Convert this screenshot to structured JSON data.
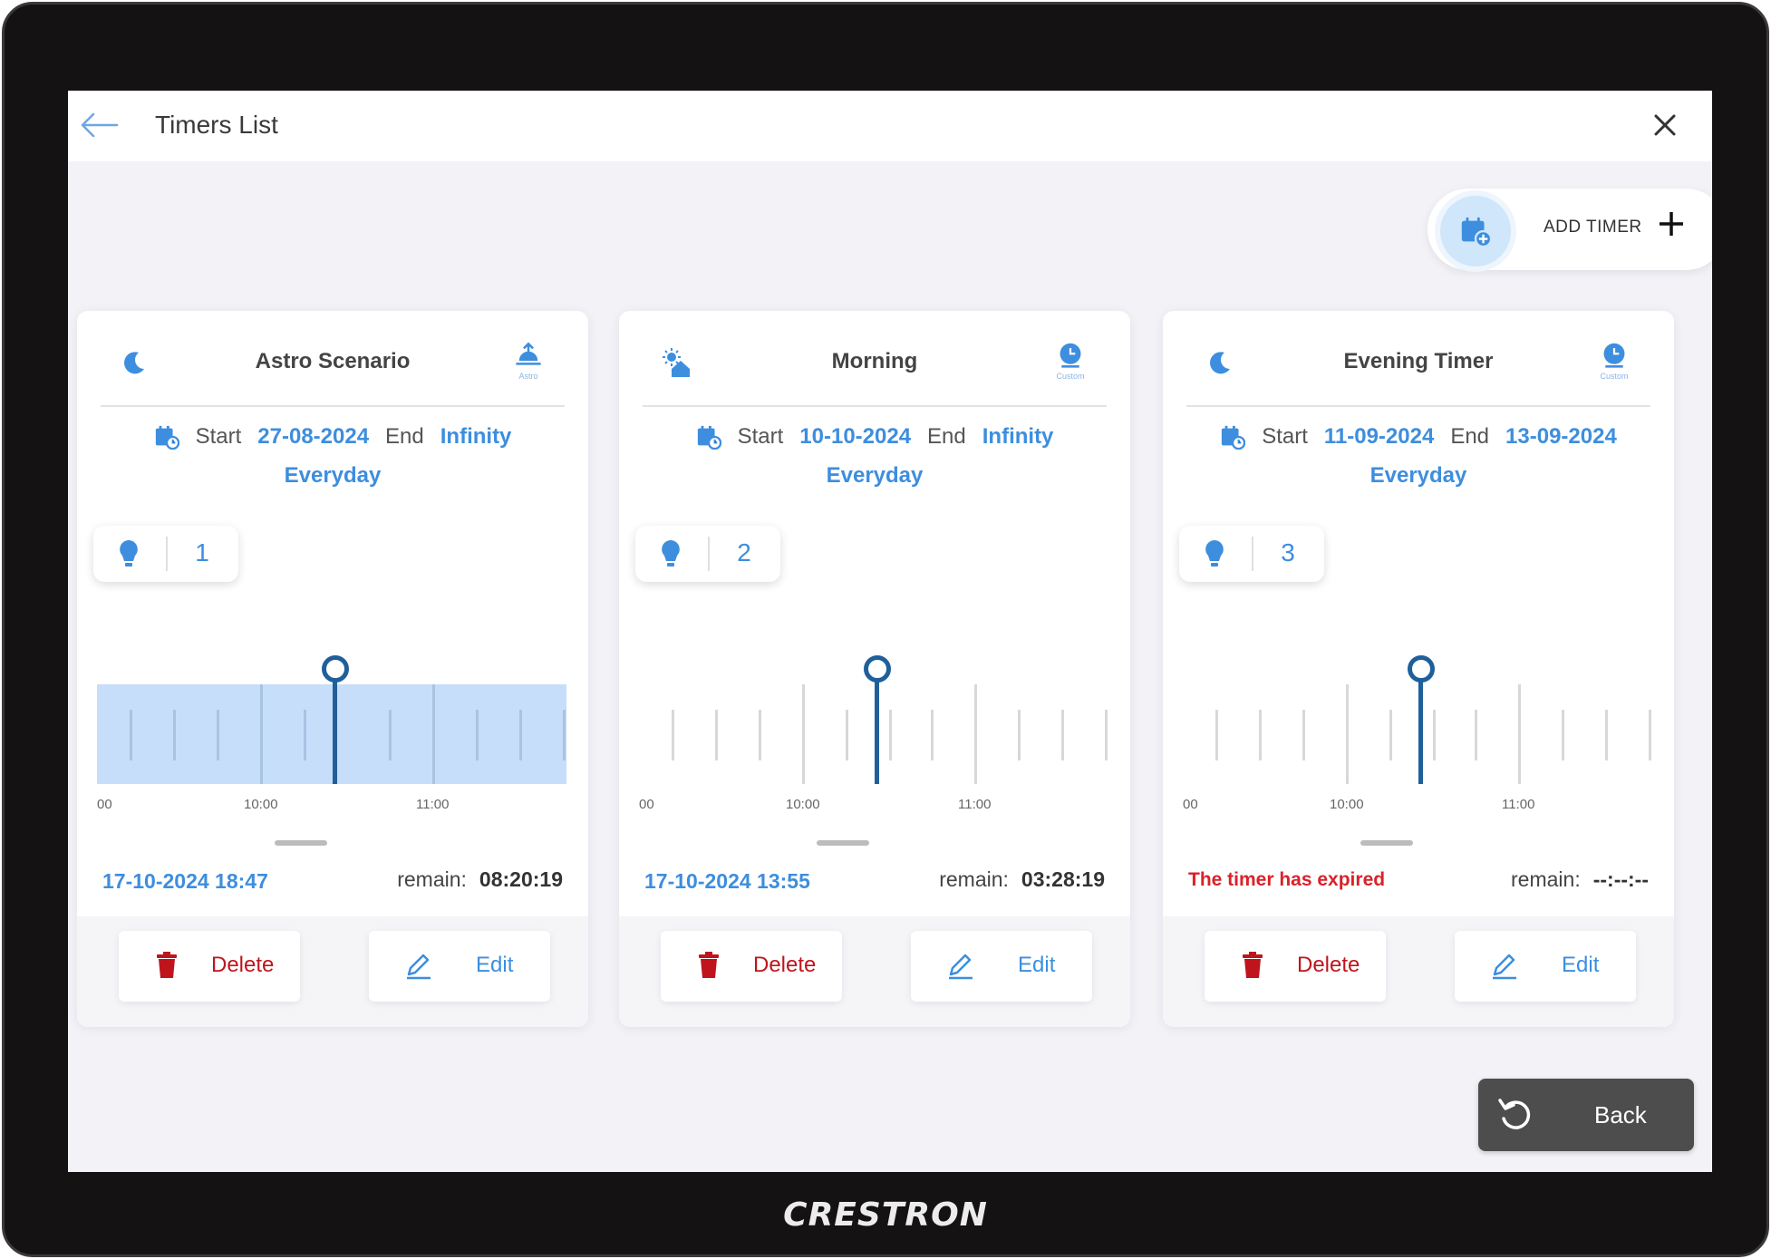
{
  "header": {
    "title": "Timers List"
  },
  "add_timer": {
    "label": "ADD TIMER"
  },
  "cards": [
    {
      "name": "Astro Scenario",
      "mode_icon": "moon-icon",
      "type_icon": "astro-icon",
      "type_caption": "Astro",
      "start_label": "Start",
      "start": "27-08-2024",
      "end_label": "End",
      "end": "Infinity",
      "repeat": "Everyday",
      "light_count": "1",
      "time_labels": [
        "00",
        "10:00",
        "11:00"
      ],
      "next": "17-10-2024 18:47",
      "remain_label": "remain:",
      "remain": "08:20:19",
      "delete_label": "Delete",
      "edit_label": "Edit"
    },
    {
      "name": "Morning",
      "mode_icon": "sun-home-icon",
      "type_icon": "clock-icon",
      "type_caption": "Custom",
      "start_label": "Start",
      "start": "10-10-2024",
      "end_label": "End",
      "end": "Infinity",
      "repeat": "Everyday",
      "light_count": "2",
      "time_labels": [
        "00",
        "10:00",
        "11:00"
      ],
      "next": "17-10-2024 13:55",
      "remain_label": "remain:",
      "remain": "03:28:19",
      "delete_label": "Delete",
      "edit_label": "Edit"
    },
    {
      "name": "Evening Timer",
      "mode_icon": "moon-icon",
      "type_icon": "clock-icon",
      "type_caption": "Custom",
      "start_label": "Start",
      "start": "11-09-2024",
      "end_label": "End",
      "end": "13-09-2024",
      "repeat": "Everyday",
      "light_count": "3",
      "time_labels": [
        "00",
        "10:00",
        "11:00"
      ],
      "next": "The timer has expired",
      "remain_label": "remain:",
      "remain": "--:--:--",
      "delete_label": "Delete",
      "edit_label": "Edit"
    }
  ],
  "back_button": {
    "label": "Back"
  },
  "brand": "CRESTRON",
  "colors": {
    "accent": "#3d8ede",
    "danger": "#c0141c",
    "dark_button": "#4d4d4d"
  }
}
